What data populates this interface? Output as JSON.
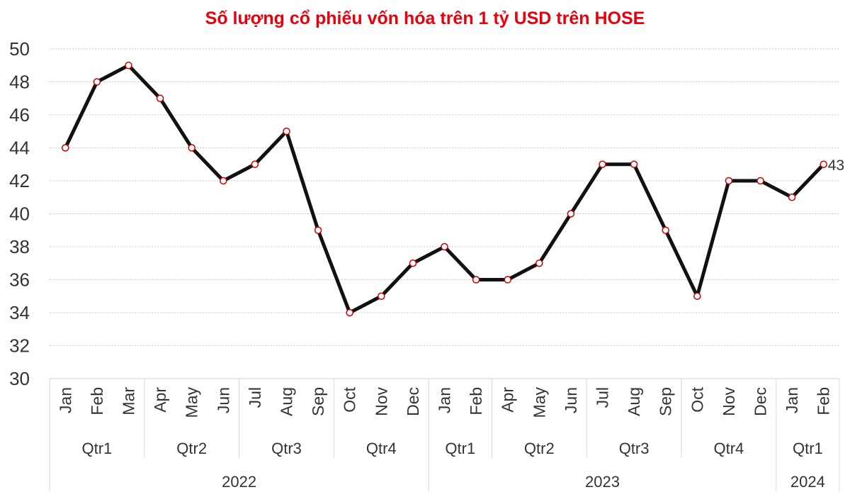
{
  "chart_data": {
    "type": "line",
    "title": "Số lượng cổ phiếu vốn hóa trên 1 tỷ USD trên HOSE",
    "xlabel": "",
    "ylabel": "",
    "ylim": [
      30,
      50
    ],
    "y_ticks": [
      "30",
      "32",
      "34",
      "36",
      "38",
      "40",
      "42",
      "44",
      "46",
      "48",
      "50"
    ],
    "grid": true,
    "legend": "none",
    "categories": [
      "Jan",
      "Feb",
      "Mar",
      "Apr",
      "May",
      "Jun",
      "Jul",
      "Aug",
      "Sep",
      "Oct",
      "Nov",
      "Dec",
      "Jan",
      "Feb",
      "Apr",
      "May",
      "Jun",
      "Jul",
      "Aug",
      "Sep",
      "Oct",
      "Nov",
      "Dec",
      "Jan",
      "Feb"
    ],
    "quarters": [
      {
        "label": "Qtr1",
        "start": 0,
        "count": 3
      },
      {
        "label": "Qtr2",
        "start": 3,
        "count": 3
      },
      {
        "label": "Qtr3",
        "start": 6,
        "count": 3
      },
      {
        "label": "Qtr4",
        "start": 9,
        "count": 3
      },
      {
        "label": "Qtr1",
        "start": 12,
        "count": 2
      },
      {
        "label": "Qtr2",
        "start": 14,
        "count": 3
      },
      {
        "label": "Qtr3",
        "start": 17,
        "count": 3
      },
      {
        "label": "Qtr4",
        "start": 20,
        "count": 3
      },
      {
        "label": "Qtr1",
        "start": 23,
        "count": 2
      }
    ],
    "years": [
      {
        "label": "2022",
        "start": 0,
        "count": 12
      },
      {
        "label": "2023",
        "start": 12,
        "count": 11
      },
      {
        "label": "2024",
        "start": 23,
        "count": 2
      }
    ],
    "series": [
      {
        "values": [
          44,
          48,
          49,
          47,
          44,
          42,
          43,
          45,
          39,
          34,
          35,
          37,
          38,
          36,
          36,
          37,
          40,
          43,
          43,
          39,
          35,
          42,
          42,
          41,
          43
        ],
        "line_color": "#111111",
        "marker_edge_color": "#cc0000",
        "marker_fill_color": "#ffffff"
      }
    ],
    "data_labels": [
      {
        "index": 24,
        "text": "43"
      }
    ]
  }
}
